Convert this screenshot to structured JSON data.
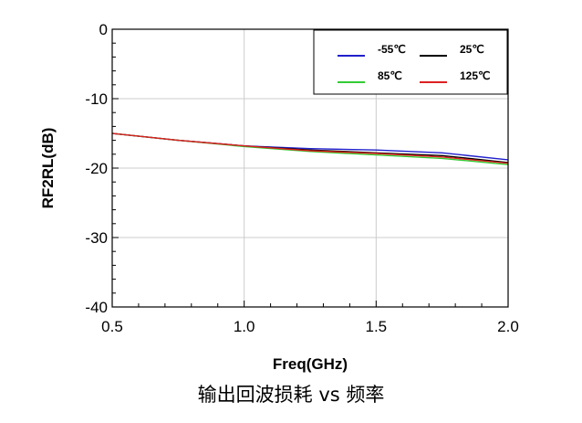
{
  "chart_data": {
    "type": "line",
    "xlabel": "Freq(GHz)",
    "ylabel": "RF2RL(dB)",
    "xlim": [
      0.5,
      2.0
    ],
    "ylim": [
      -40,
      0
    ],
    "x_ticks": [
      "0.5",
      "1.0",
      "1.5",
      "2.0"
    ],
    "y_ticks": [
      "0",
      "-10",
      "-20",
      "-30",
      "-40"
    ],
    "grid": true,
    "legend_position": "top-right",
    "x": [
      0.5,
      0.75,
      1.0,
      1.25,
      1.5,
      1.75,
      2.0
    ],
    "series": [
      {
        "name": "-55℃",
        "color": "#2020cc",
        "values": [
          -15.0,
          -16.0,
          -16.8,
          -17.2,
          -17.4,
          -17.8,
          -18.8
        ]
      },
      {
        "name": "25℃",
        "color": "#000000",
        "values": [
          -15.0,
          -16.0,
          -16.8,
          -17.4,
          -17.8,
          -18.2,
          -19.2
        ]
      },
      {
        "name": "85℃",
        "color": "#33cc33",
        "values": [
          -15.0,
          -16.0,
          -16.9,
          -17.6,
          -18.1,
          -18.6,
          -19.5
        ]
      },
      {
        "name": "125℃",
        "color": "#dd2020",
        "values": [
          -15.0,
          -16.0,
          -16.8,
          -17.5,
          -17.9,
          -18.4,
          -19.3
        ]
      }
    ]
  },
  "caption": "输出回波损耗 vs 频率"
}
